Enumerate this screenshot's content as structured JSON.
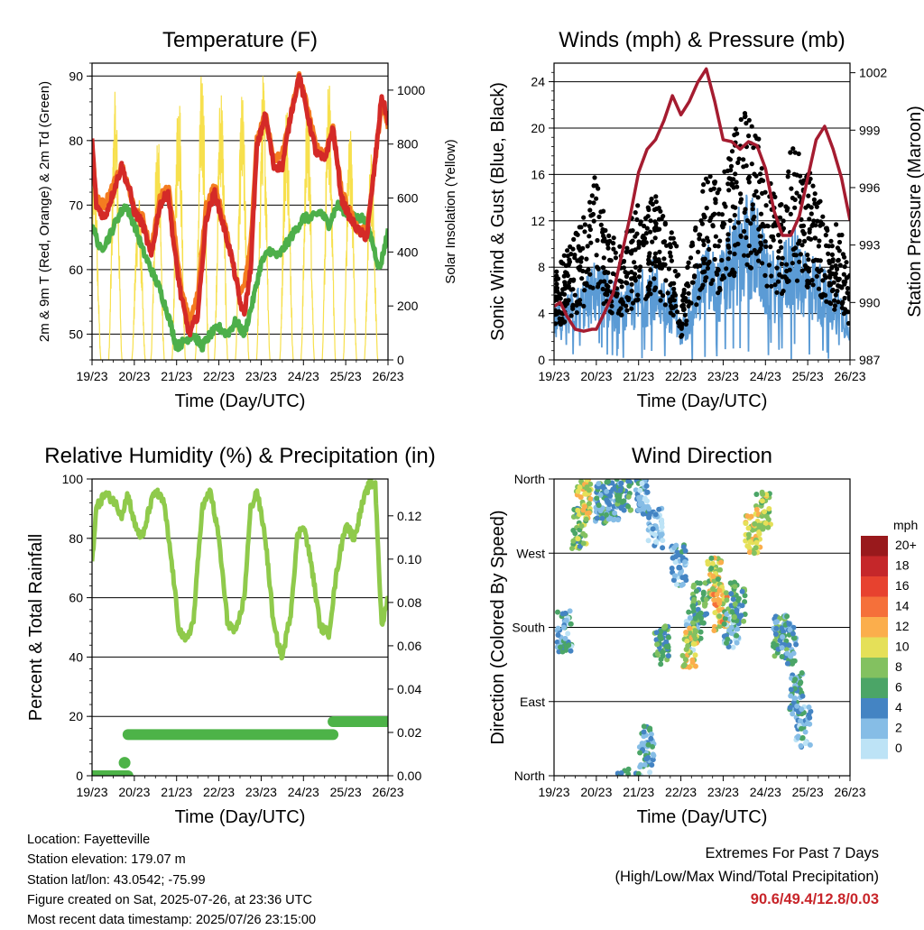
{
  "chart_data": [
    {
      "id": "temperature",
      "type": "line",
      "title": "Temperature (F)",
      "xlabel": "Time (Day/UTC)",
      "ylabel": "2m & 9m T (Red, Orange) & 2m Td (Green)",
      "y2label": "Solar Insolation (Yellow)",
      "x_ticks": [
        "19/23",
        "20/23",
        "21/23",
        "22/23",
        "23/23",
        "24/23",
        "25/23",
        "26/23"
      ],
      "ylim": [
        46,
        92
      ],
      "y_ticks": [
        50,
        60,
        70,
        80,
        90
      ],
      "y2lim": [
        0,
        1100
      ],
      "y2_ticks": [
        0,
        200,
        400,
        600,
        800,
        1000
      ],
      "grid": "horizontal",
      "series": [
        {
          "key": "t9m",
          "color": "#f47c20",
          "width": 5,
          "axis": "left",
          "x": [
            0,
            0.1,
            0.3,
            0.5,
            0.7,
            0.9,
            1.0,
            1.2,
            1.4,
            1.6,
            1.8,
            1.95,
            2.1,
            2.3,
            2.5,
            2.7,
            2.9,
            3.1,
            3.3,
            3.5,
            3.6,
            3.75,
            3.9,
            4.1,
            4.3,
            4.5,
            4.7,
            4.9,
            5.1,
            5.3,
            5.5,
            5.7,
            5.9,
            6.1,
            6.3,
            6.5,
            6.7,
            6.85,
            7.0
          ],
          "y": [
            79,
            71,
            70,
            73,
            76,
            72,
            69,
            68,
            63,
            71,
            73,
            66,
            57,
            52,
            56,
            70,
            73,
            68,
            62,
            56,
            58,
            64,
            80,
            84,
            77,
            78,
            84,
            90,
            85,
            79,
            78,
            82,
            72,
            69,
            66,
            66,
            77,
            86,
            82
          ]
        },
        {
          "key": "t2m",
          "color": "#d42a27",
          "width": 5,
          "axis": "left",
          "x": [
            0,
            0.1,
            0.3,
            0.5,
            0.7,
            0.9,
            1.0,
            1.2,
            1.4,
            1.6,
            1.8,
            1.95,
            2.1,
            2.3,
            2.5,
            2.7,
            2.9,
            3.1,
            3.3,
            3.5,
            3.6,
            3.75,
            3.9,
            4.1,
            4.3,
            4.5,
            4.7,
            4.9,
            5.1,
            5.3,
            5.5,
            5.7,
            5.9,
            6.1,
            6.3,
            6.5,
            6.7,
            6.85,
            7.0
          ],
          "y": [
            80,
            70,
            68,
            72,
            76,
            72,
            69,
            67,
            62,
            70,
            72,
            63,
            56,
            50,
            53,
            68,
            72,
            67,
            62,
            55,
            53,
            60,
            79,
            84,
            76,
            76,
            84,
            90,
            84,
            78,
            77,
            82,
            71,
            68,
            66,
            65,
            77,
            87,
            83
          ]
        },
        {
          "key": "td2m",
          "color": "#4daf4a",
          "width": 5,
          "axis": "left",
          "x": [
            0,
            0.2,
            0.4,
            0.6,
            0.8,
            1.0,
            1.2,
            1.4,
            1.6,
            1.8,
            2.0,
            2.2,
            2.4,
            2.6,
            2.8,
            3.0,
            3.2,
            3.4,
            3.6,
            3.8,
            4.0,
            4.2,
            4.4,
            4.6,
            4.8,
            5.0,
            5.2,
            5.4,
            5.6,
            5.8,
            6.0,
            6.2,
            6.4,
            6.6,
            6.8,
            7.0
          ],
          "y": [
            67,
            63,
            65,
            68,
            70,
            67,
            63,
            60,
            57,
            53,
            48,
            49,
            50,
            48,
            50,
            51,
            50,
            52,
            50,
            55,
            61,
            63,
            62,
            64,
            66,
            68,
            68,
            69,
            67,
            70,
            69,
            68,
            68,
            65,
            60,
            66
          ]
        },
        {
          "key": "solar",
          "color": "#f7e04d",
          "width": 1.2,
          "axis": "right",
          "peaks": [
            {
              "c": 0.05,
              "h": 780,
              "w": 0.32
            },
            {
              "c": 0.55,
              "h": 1000,
              "w": 0.32
            },
            {
              "c": 1.1,
              "h": 620,
              "w": 0.32
            },
            {
              "c": 1.55,
              "h": 870,
              "w": 0.32
            },
            {
              "c": 2.05,
              "h": 1050,
              "w": 0.32
            },
            {
              "c": 2.6,
              "h": 1100,
              "w": 0.32
            },
            {
              "c": 3.05,
              "h": 1050,
              "w": 0.32
            },
            {
              "c": 3.55,
              "h": 1000,
              "w": 0.32
            },
            {
              "c": 4.05,
              "h": 1070,
              "w": 0.32
            },
            {
              "c": 4.6,
              "h": 980,
              "w": 0.32
            },
            {
              "c": 5.1,
              "h": 1000,
              "w": 0.32
            },
            {
              "c": 5.6,
              "h": 1050,
              "w": 0.32
            },
            {
              "c": 6.1,
              "h": 900,
              "w": 0.32
            },
            {
              "c": 6.6,
              "h": 800,
              "w": 0.32
            }
          ]
        }
      ]
    },
    {
      "id": "winds",
      "type": "scatter",
      "title": "Winds (mph) & Pressure (mb)",
      "xlabel": "Time (Day/UTC)",
      "ylabel": "Sonic Wind & Gust (Blue, Black)",
      "y2label": "Station Pressure (Maroon)",
      "x_ticks": [
        "19/23",
        "20/23",
        "21/23",
        "22/23",
        "23/23",
        "24/23",
        "25/23",
        "26/23"
      ],
      "ylim": [
        0,
        25.6
      ],
      "y_ticks": [
        0,
        4,
        8,
        12,
        16,
        20,
        24
      ],
      "y2lim": [
        987,
        1002.5
      ],
      "y2_ticks": [
        987,
        990,
        993,
        996,
        999,
        1002
      ],
      "grid": "horizontal",
      "wind_mean": {
        "x": [
          0,
          0.4,
          0.8,
          1.0,
          1.3,
          1.6,
          2.0,
          2.3,
          2.6,
          2.9,
          3.0,
          3.3,
          3.6,
          3.9,
          4.2,
          4.4,
          4.6,
          4.8,
          5.0,
          5.3,
          5.6,
          5.9,
          6.2,
          6.5,
          6.8,
          7.0
        ],
        "y": [
          3,
          4,
          5,
          6,
          5,
          4,
          5,
          6,
          5,
          4,
          2,
          5,
          7,
          6,
          8,
          9,
          10,
          9,
          7,
          6,
          8,
          7,
          6,
          5,
          4,
          3
        ]
      },
      "gust": {
        "x": [
          0,
          0.4,
          0.8,
          1.0,
          1.3,
          1.6,
          2.0,
          2.3,
          2.6,
          2.9,
          3.0,
          3.3,
          3.6,
          3.9,
          4.2,
          4.4,
          4.6,
          4.8,
          5.0,
          5.3,
          5.6,
          5.9,
          6.2,
          6.5,
          6.8,
          7.0
        ],
        "y": [
          6,
          8,
          11,
          13,
          9,
          8,
          11,
          12,
          10,
          8,
          4,
          9,
          13,
          12,
          15,
          17,
          18,
          16,
          13,
          11,
          15,
          14,
          12,
          10,
          9,
          6
        ]
      },
      "series": [
        {
          "key": "pressure",
          "color": "#a51c30",
          "width": 3.5,
          "axis": "right",
          "x": [
            0,
            0.15,
            0.3,
            0.5,
            0.7,
            0.9,
            1.0,
            1.2,
            1.4,
            1.6,
            1.8,
            2.0,
            2.2,
            2.4,
            2.6,
            2.8,
            3.0,
            3.2,
            3.4,
            3.6,
            3.8,
            4.0,
            4.2,
            4.4,
            4.6,
            4.8,
            5.0,
            5.2,
            5.4,
            5.6,
            5.8,
            6.0,
            6.2,
            6.4,
            6.6,
            6.8,
            7.0
          ],
          "y": [
            989.8,
            990,
            989.3,
            988.6,
            988.5,
            988.6,
            988.6,
            989.5,
            990.5,
            992.5,
            994.5,
            996.8,
            998,
            998.5,
            999.5,
            1000.8,
            999.8,
            1000.5,
            1001.5,
            1002.2,
            1000.5,
            998.5,
            998.4,
            998,
            998.4,
            998.2,
            997,
            994.8,
            993.5,
            993.5,
            994.5,
            996.5,
            998.5,
            999.2,
            998,
            996.5,
            994.3
          ]
        }
      ]
    },
    {
      "id": "humidity",
      "type": "line",
      "title": "Relative Humidity (%) & Precipitation (in)",
      "xlabel": "Time (Day/UTC)",
      "ylabel": "Percent & Total Rainfall",
      "x_ticks": [
        "19/23",
        "20/23",
        "21/23",
        "22/23",
        "23/23",
        "24/23",
        "25/23",
        "26/23"
      ],
      "ylim": [
        0,
        100
      ],
      "y_ticks": [
        0,
        20,
        40,
        60,
        80,
        100
      ],
      "y2lim": [
        0,
        0.137
      ],
      "y2_ticks": [
        "0.00",
        "0.02",
        "0.04",
        "0.06",
        "0.08",
        "0.10",
        "0.12"
      ],
      "grid": "horizontal",
      "series": [
        {
          "key": "rh",
          "color": "#8fca4b",
          "width": 5,
          "axis": "left",
          "x": [
            0,
            0.1,
            0.3,
            0.5,
            0.7,
            0.85,
            1.0,
            1.1,
            1.2,
            1.35,
            1.5,
            1.7,
            1.9,
            2.05,
            2.2,
            2.4,
            2.6,
            2.8,
            3.0,
            3.2,
            3.4,
            3.6,
            3.75,
            3.9,
            4.1,
            4.3,
            4.5,
            4.7,
            4.85,
            5.0,
            5.2,
            5.4,
            5.6,
            5.8,
            6.0,
            6.2,
            6.4,
            6.55,
            6.7,
            6.85,
            7.0
          ],
          "y": [
            72,
            90,
            95,
            93,
            88,
            95,
            85,
            82,
            80,
            90,
            96,
            92,
            70,
            50,
            45,
            52,
            90,
            96,
            80,
            52,
            48,
            60,
            90,
            96,
            80,
            50,
            40,
            55,
            80,
            85,
            70,
            50,
            48,
            70,
            85,
            80,
            92,
            98,
            98,
            50,
            60
          ]
        },
        {
          "key": "precip",
          "color": "#4db348",
          "width": 12,
          "axis": "right",
          "step": true,
          "x": [
            0,
            0.85,
            0.85,
            5.7,
            5.7,
            7.0
          ],
          "y": [
            0,
            0,
            0.019,
            0.019,
            0.025,
            0.025
          ]
        }
      ],
      "precip_dots": [
        {
          "x": 0.77,
          "y": 0.006
        }
      ]
    },
    {
      "id": "direction",
      "type": "scatter",
      "title": "Wind Direction",
      "xlabel": "Time (Day/UTC)",
      "ylabel": "Direction (Colored By Speed)",
      "x_ticks": [
        "19/23",
        "20/23",
        "21/23",
        "22/23",
        "23/23",
        "24/23",
        "25/23",
        "26/23"
      ],
      "ylim": [
        0,
        360
      ],
      "y_ticks": [
        "North",
        "East",
        "South",
        "West",
        "North"
      ],
      "grid": "horizontal",
      "colorbar_unit": "mph",
      "colorbar_labels": [
        "20+",
        "18",
        "16",
        "14",
        "12",
        "10",
        "8",
        "6",
        "4",
        "2",
        "0"
      ],
      "colorbar_colors": [
        "#99191c",
        "#c5272a",
        "#e7422f",
        "#f5703a",
        "#fbae4c",
        "#e5e058",
        "#83c160",
        "#4ba567",
        "#4484c3",
        "#86bde6",
        "#bde3f6"
      ],
      "clusters": [
        {
          "x": 0.25,
          "y": 175,
          "spd": 3
        },
        {
          "x": 0.6,
          "y": 300,
          "spd": 7
        },
        {
          "x": 0.7,
          "y": 335,
          "spd": 10
        },
        {
          "x": 1.15,
          "y": 330,
          "spd": 5
        },
        {
          "x": 1.4,
          "y": 335,
          "spd": 4
        },
        {
          "x": 1.65,
          "y": 345,
          "spd": 6
        },
        {
          "x": 2.1,
          "y": 340,
          "spd": 3
        },
        {
          "x": 2.4,
          "y": 300,
          "spd": 2
        },
        {
          "x": 2.2,
          "y": 35,
          "spd": 4
        },
        {
          "x": 2.55,
          "y": 160,
          "spd": 6
        },
        {
          "x": 2.95,
          "y": 255,
          "spd": 3
        },
        {
          "x": 3.3,
          "y": 175,
          "spd": 3
        },
        {
          "x": 3.2,
          "y": 155,
          "spd": 10
        },
        {
          "x": 3.45,
          "y": 210,
          "spd": 6
        },
        {
          "x": 3.8,
          "y": 240,
          "spd": 9
        },
        {
          "x": 3.95,
          "y": 200,
          "spd": 11
        },
        {
          "x": 4.2,
          "y": 180,
          "spd": 3
        },
        {
          "x": 4.35,
          "y": 210,
          "spd": 6
        },
        {
          "x": 4.7,
          "y": 295,
          "spd": 10
        },
        {
          "x": 4.95,
          "y": 320,
          "spd": 9
        },
        {
          "x": 5.35,
          "y": 170,
          "spd": 5
        },
        {
          "x": 5.55,
          "y": 160,
          "spd": 4
        },
        {
          "x": 5.75,
          "y": 100,
          "spd": 4
        },
        {
          "x": 5.9,
          "y": 60,
          "spd": 3
        }
      ]
    }
  ],
  "footer": {
    "location": "Location: Fayetteville",
    "elevation": "Station elevation: 179.07 m",
    "latlon": "Station lat/lon: 43.0542; -75.99",
    "created": "Figure created on Sat, 2025-07-26, at 23:36 UTC",
    "recent": "Most recent data timestamp: 2025/07/26 23:15:00",
    "extremes_title": "Extremes For Past 7 Days",
    "extremes_sub": "(High/Low/Max Wind/Total Precipitation)",
    "extremes_values": "90.6/49.4/12.8/0.03"
  }
}
